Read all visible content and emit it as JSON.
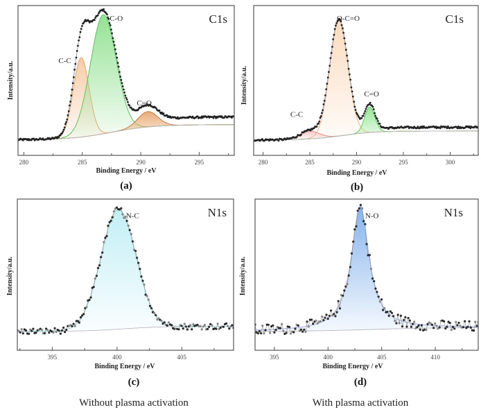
{
  "chart_data": [
    {
      "id": "a",
      "type": "line",
      "panel_letter": "(a)",
      "title": "C1s",
      "xlabel": "Binding Energy / eV",
      "ylabel": "Intensity/a.u.",
      "xlim": [
        279.5,
        298
      ],
      "xticks": [
        280,
        285,
        290,
        295
      ],
      "xtick_labels": [
        "280",
        "285",
        "290",
        "295"
      ],
      "ylim": [
        -0.12,
        1.05
      ],
      "background": {
        "low": 0.0,
        "high": 0.12,
        "center": 287.5,
        "width": 1.8
      },
      "raw_baseline": {
        "low": 0.0,
        "high": 0.18
      },
      "components": [
        {
          "name": "C-C",
          "center": 284.9,
          "amplitude": 0.62,
          "fwhm": 1.6,
          "color": "#f0a060",
          "fill": "#f6c9a4"
        },
        {
          "name": "C-O",
          "center": 286.8,
          "amplitude": 0.93,
          "fwhm": 2.6,
          "color": "#58c45c",
          "fill": "#8fe08f"
        },
        {
          "name": "C=O",
          "center": 290.6,
          "amplitude": 0.12,
          "fwhm": 2.0,
          "color": "#c87840",
          "fill": "#e9a870"
        }
      ],
      "annotations": [
        {
          "text": "C-C",
          "x": 283.5,
          "y": 0.6
        },
        {
          "text": "C-O",
          "x": 287.9,
          "y": 0.93
        },
        {
          "text": "C=O",
          "x": 290.3,
          "y": 0.27
        }
      ]
    },
    {
      "id": "b",
      "type": "line",
      "panel_letter": "(b)",
      "title": "C1s",
      "xlabel": "Binding Energy / eV",
      "ylabel": "Intensity/a.u.",
      "xlim": [
        279,
        303
      ],
      "xticks": [
        280,
        285,
        290,
        295,
        300
      ],
      "xtick_labels": [
        "280",
        "285",
        "290",
        "295",
        "300"
      ],
      "ylim": [
        -0.12,
        1.05
      ],
      "background": {
        "low": 0.0,
        "high": 0.07,
        "center": 288.5,
        "width": 1.8
      },
      "raw_baseline": {
        "low": 0.0,
        "high": 0.1
      },
      "components": [
        {
          "name": "C-C",
          "center": 285.0,
          "amplitude": 0.06,
          "fwhm": 2.4,
          "color": "#e88080",
          "fill": "#f7c6c6"
        },
        {
          "name": "O-C=O",
          "center": 288.1,
          "amplitude": 0.9,
          "fwhm": 2.3,
          "color": "#f0b080",
          "fill": "#fbd9bb"
        },
        {
          "name": "C=O",
          "center": 291.4,
          "amplitude": 0.2,
          "fwhm": 1.3,
          "color": "#5ccc60",
          "fill": "#8ee48f"
        }
      ],
      "annotations": [
        {
          "text": "C-C",
          "x": 283.6,
          "y": 0.18
        },
        {
          "text": "O-C=O",
          "x": 289.1,
          "y": 0.93
        },
        {
          "text": "C=O",
          "x": 291.6,
          "y": 0.34
        }
      ]
    },
    {
      "id": "c",
      "type": "line",
      "panel_letter": "(c)",
      "title": "N1s",
      "xlabel": "Binding Energy / eV",
      "ylabel": "Intensity/a.u.",
      "xlim": [
        392.3,
        409
      ],
      "xticks": [
        395,
        400,
        405
      ],
      "xtick_labels": [
        "395",
        "400",
        "405"
      ],
      "ylim": [
        -0.15,
        1.05
      ],
      "background": {
        "low": 0.0,
        "high": 0.04,
        "center": 400.5,
        "width": 1.5
      },
      "raw_baseline": {
        "low": 0.0,
        "high": 0.04
      },
      "noise": 0.025,
      "components": [
        {
          "name": "N-C",
          "center": 400.1,
          "amplitude": 0.95,
          "fwhm": 3.2,
          "color": "#9ad8dc",
          "fill": "#bfeef5"
        }
      ],
      "annotations": [
        {
          "text": "N-C",
          "x": 401.2,
          "y": 0.9
        }
      ]
    },
    {
      "id": "d",
      "type": "line",
      "panel_letter": "(d)",
      "title": "N1s",
      "xlabel": "Binding Energy / eV",
      "ylabel": "Intensity/a.u.",
      "xlim": [
        393.2,
        414
      ],
      "xticks": [
        395,
        400,
        405,
        410
      ],
      "xtick_labels": [
        "395",
        "400",
        "405",
        "410"
      ],
      "ylim": [
        -0.15,
        1.05
      ],
      "background": {
        "low": 0.0,
        "high": 0.03,
        "center": 404,
        "width": 3
      },
      "raw_baseline": {
        "low": 0.0,
        "high": 0.03
      },
      "noise": 0.045,
      "components": [
        {
          "name": "N-O",
          "center": 403.0,
          "amplitude": 0.98,
          "fwhm": 2.0,
          "color": "#a0b4e8",
          "fill": "#7fb0ec",
          "lorentzian": true
        }
      ],
      "annotations": [
        {
          "text": "N-O",
          "x": 404.1,
          "y": 0.9
        }
      ]
    }
  ],
  "captions": {
    "left": "Without plasma activation",
    "right": "With plasma activation"
  }
}
